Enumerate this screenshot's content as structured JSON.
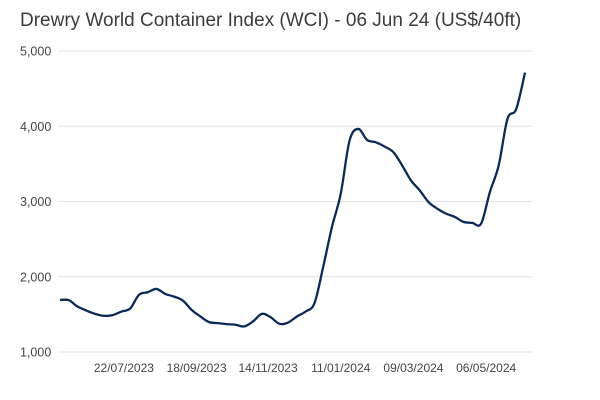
{
  "chart_data": {
    "type": "line",
    "title": "Drewry World Container Index (WCI) - 06 Jun 24 (US$/40ft)",
    "xlabel": "",
    "ylabel": "",
    "ylim": [
      1000,
      5000
    ],
    "yticks": [
      1000,
      2000,
      3000,
      4000,
      5000
    ],
    "ytick_labels": [
      "1,000",
      "2,000",
      "3,000",
      "4,000",
      "5,000"
    ],
    "xticks": [
      "22/07/2023",
      "18/09/2023",
      "14/11/2023",
      "11/01/2024",
      "09/03/2024",
      "06/05/2024"
    ],
    "grid": "horizontal",
    "line_color": "#0b2a55",
    "x": [
      "01/06/2023",
      "08/06/2023",
      "15/06/2023",
      "22/06/2023",
      "29/06/2023",
      "06/07/2023",
      "13/07/2023",
      "20/07/2023",
      "27/07/2023",
      "03/08/2023",
      "10/08/2023",
      "17/08/2023",
      "24/08/2023",
      "31/08/2023",
      "07/09/2023",
      "14/09/2023",
      "21/09/2023",
      "28/09/2023",
      "05/10/2023",
      "12/10/2023",
      "19/10/2023",
      "26/10/2023",
      "02/11/2023",
      "09/11/2023",
      "16/11/2023",
      "23/11/2023",
      "30/11/2023",
      "07/12/2023",
      "14/12/2023",
      "21/12/2023",
      "28/12/2023",
      "04/01/2024",
      "11/01/2024",
      "18/01/2024",
      "25/01/2024",
      "01/02/2024",
      "08/02/2024",
      "15/02/2024",
      "22/02/2024",
      "29/02/2024",
      "07/03/2024",
      "14/03/2024",
      "21/03/2024",
      "28/03/2024",
      "04/04/2024",
      "11/04/2024",
      "18/04/2024",
      "25/04/2024",
      "02/05/2024",
      "09/05/2024",
      "16/05/2024",
      "23/05/2024",
      "30/05/2024",
      "06/06/2024"
    ],
    "values": [
      1692,
      1688,
      1604,
      1551,
      1507,
      1481,
      1490,
      1538,
      1578,
      1759,
      1794,
      1838,
      1772,
      1736,
      1684,
      1560,
      1472,
      1397,
      1384,
      1370,
      1362,
      1340,
      1406,
      1507,
      1463,
      1375,
      1392,
      1472,
      1538,
      1648,
      2133,
      2663,
      3104,
      3809,
      3964,
      3818,
      3787,
      3730,
      3655,
      3479,
      3280,
      3148,
      2993,
      2905,
      2839,
      2795,
      2729,
      2716,
      2707,
      3126,
      3479,
      4096,
      4228,
      4713
    ]
  }
}
